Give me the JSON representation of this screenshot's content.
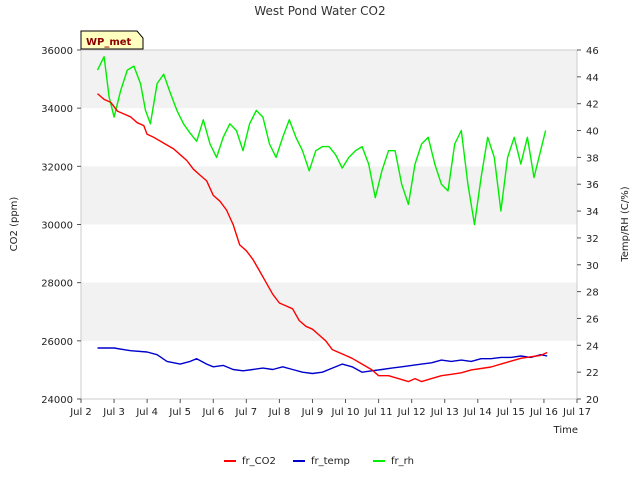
{
  "chart_data": {
    "type": "line",
    "title": "West Pond Water CO2",
    "xlabel": "Time",
    "ylabel": "CO2 (ppm)",
    "y2label": "Temp/RH (C/%)",
    "badge": "WP_met",
    "xlim": [
      2,
      17
    ],
    "ylim": [
      24000,
      36000
    ],
    "y2lim": [
      20,
      46
    ],
    "x_ticks": [
      2,
      3,
      4,
      5,
      6,
      7,
      8,
      9,
      10,
      11,
      12,
      13,
      14,
      15,
      16,
      17
    ],
    "x_tick_labels": [
      "Jul 2",
      "Jul 3",
      "Jul 4",
      "Jul 5",
      "Jul 6",
      "Jul 7",
      "Jul 8",
      "Jul 9",
      "Jul 10",
      "Jul 11",
      "Jul 12",
      "Jul 13",
      "Jul 14",
      "Jul 15",
      "Jul 16",
      "Jul 17"
    ],
    "y_ticks": [
      24000,
      26000,
      28000,
      30000,
      32000,
      34000,
      36000
    ],
    "y2_ticks": [
      20,
      22,
      24,
      26,
      28,
      30,
      32,
      34,
      36,
      38,
      40,
      42,
      44,
      46
    ],
    "grid": "horizontal alternating bands",
    "legend_position": "bottom",
    "series": [
      {
        "name": "fr_CO2",
        "axis": "left",
        "color": "#ff0000",
        "x": [
          2.5,
          2.7,
          2.9,
          3.1,
          3.3,
          3.5,
          3.7,
          3.9,
          4.0,
          4.2,
          4.5,
          4.8,
          5.0,
          5.2,
          5.4,
          5.6,
          5.8,
          6.0,
          6.2,
          6.4,
          6.6,
          6.8,
          7.0,
          7.2,
          7.4,
          7.6,
          7.8,
          8.0,
          8.2,
          8.4,
          8.6,
          8.8,
          9.0,
          9.2,
          9.4,
          9.6,
          9.8,
          10.0,
          10.2,
          10.5,
          10.8,
          11.0,
          11.3,
          11.6,
          11.9,
          12.1,
          12.3,
          12.6,
          12.9,
          13.2,
          13.5,
          13.8,
          14.1,
          14.4,
          14.7,
          15.0,
          15.3,
          15.6,
          15.9,
          16.1
        ],
        "y": [
          34500,
          34300,
          34200,
          33900,
          33800,
          33700,
          33500,
          33400,
          33100,
          33000,
          32800,
          32600,
          32400,
          32200,
          31900,
          31700,
          31500,
          31000,
          30800,
          30500,
          30000,
          29300,
          29100,
          28800,
          28400,
          28000,
          27600,
          27300,
          27200,
          27100,
          26700,
          26500,
          26400,
          26200,
          26000,
          25700,
          25600,
          25500,
          25400,
          25200,
          25000,
          24800,
          24800,
          24700,
          24600,
          24700,
          24600,
          24700,
          24800,
          24850,
          24900,
          25000,
          25050,
          25100,
          25200,
          25300,
          25400,
          25450,
          25500,
          25600
        ]
      },
      {
        "name": "fr_temp",
        "axis": "right",
        "color": "#0000cc",
        "x": [
          2.5,
          3.0,
          3.5,
          4.0,
          4.3,
          4.6,
          5.0,
          5.3,
          5.5,
          5.8,
          6.0,
          6.3,
          6.6,
          6.9,
          7.2,
          7.5,
          7.8,
          8.1,
          8.4,
          8.7,
          9.0,
          9.3,
          9.6,
          9.9,
          10.2,
          10.5,
          10.8,
          11.1,
          11.4,
          11.7,
          12.0,
          12.3,
          12.6,
          12.9,
          13.2,
          13.5,
          13.8,
          14.1,
          14.4,
          14.7,
          15.0,
          15.3,
          15.6,
          15.9,
          16.1
        ],
        "y": [
          23.8,
          23.8,
          23.6,
          23.5,
          23.3,
          22.8,
          22.6,
          22.8,
          23.0,
          22.6,
          22.4,
          22.5,
          22.2,
          22.1,
          22.2,
          22.3,
          22.2,
          22.4,
          22.2,
          22.0,
          21.9,
          22.0,
          22.3,
          22.6,
          22.4,
          22.0,
          22.1,
          22.2,
          22.3,
          22.4,
          22.5,
          22.6,
          22.7,
          22.9,
          22.8,
          22.9,
          22.8,
          23.0,
          23.0,
          23.1,
          23.1,
          23.2,
          23.1,
          23.3,
          23.2
        ]
      },
      {
        "name": "fr_rh",
        "axis": "right",
        "color": "#00ee00",
        "x": [
          2.5,
          2.7,
          2.85,
          3.0,
          3.2,
          3.4,
          3.6,
          3.8,
          3.95,
          4.1,
          4.3,
          4.5,
          4.7,
          4.9,
          5.1,
          5.3,
          5.5,
          5.7,
          5.9,
          6.1,
          6.3,
          6.5,
          6.7,
          6.9,
          7.1,
          7.3,
          7.5,
          7.7,
          7.9,
          8.1,
          8.3,
          8.5,
          8.7,
          8.9,
          9.1,
          9.3,
          9.5,
          9.7,
          9.9,
          10.1,
          10.3,
          10.5,
          10.7,
          10.9,
          11.1,
          11.3,
          11.5,
          11.7,
          11.9,
          12.1,
          12.3,
          12.5,
          12.7,
          12.9,
          13.1,
          13.3,
          13.5,
          13.7,
          13.9,
          14.1,
          14.3,
          14.5,
          14.7,
          14.9,
          15.1,
          15.3,
          15.5,
          15.7,
          15.9,
          16.05
        ],
        "y": [
          44.5,
          45.5,
          42.5,
          41.0,
          43.0,
          44.5,
          44.8,
          43.5,
          41.5,
          40.5,
          43.5,
          44.2,
          42.8,
          41.5,
          40.5,
          39.8,
          39.2,
          40.8,
          39.0,
          38.0,
          39.5,
          40.5,
          40.0,
          38.5,
          40.5,
          41.5,
          41.0,
          39.0,
          38.0,
          39.5,
          40.8,
          39.5,
          38.5,
          37.0,
          38.5,
          38.8,
          38.8,
          38.2,
          37.2,
          38.0,
          38.5,
          38.8,
          37.5,
          35.0,
          37.0,
          38.5,
          38.5,
          36.0,
          34.5,
          37.5,
          39.0,
          39.5,
          37.5,
          36.0,
          35.5,
          39.0,
          40.0,
          36.0,
          33.0,
          36.5,
          39.5,
          38.0,
          34.0,
          38.0,
          39.5,
          37.5,
          39.5,
          36.5,
          38.5,
          40.0
        ]
      }
    ]
  }
}
